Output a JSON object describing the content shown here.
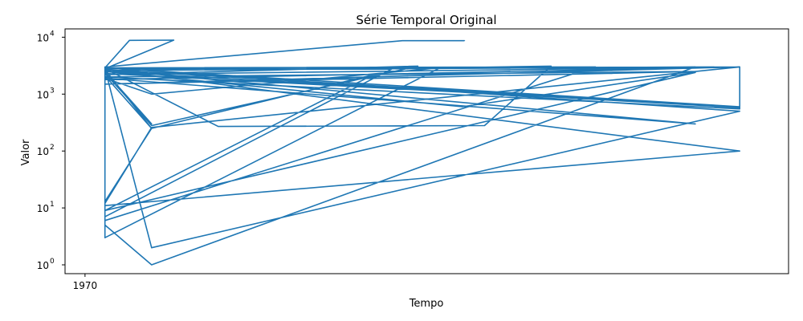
{
  "chart_data": {
    "type": "line",
    "title": "Série Temporal Original",
    "xlabel": "Tempo",
    "ylabel": "Valor",
    "yscale": "log",
    "ylim": [
      0.7,
      14000
    ],
    "grid": false,
    "legend": "none",
    "color": "#1f77b4",
    "x_ticks": [
      {
        "label": "1970",
        "t": 0
      }
    ],
    "y_ticks": [
      {
        "base": "10",
        "exp": "0",
        "value": 1
      },
      {
        "base": "10",
        "exp": "1",
        "value": 10
      },
      {
        "base": "10",
        "exp": "2",
        "value": 100
      },
      {
        "base": "10",
        "exp": "3",
        "value": 1000
      },
      {
        "base": "10",
        "exp": "4",
        "value": 10000
      }
    ],
    "xlim": [
      -0.09,
      3.17
    ],
    "series": [
      {
        "x": [
          0.09,
          0.09,
          0.09,
          0.2,
          0.4,
          0.09,
          1.6,
          2.1,
          1.8,
          0.6,
          0.09,
          0.09,
          0.3,
          0.09,
          0.09,
          0.3,
          2.75,
          0.09,
          0.09,
          0.09,
          1.7,
          2.75,
          0.09,
          1.3,
          0.3,
          0.09,
          0.09,
          2.3,
          0.09,
          2.95,
          0.3,
          0.09,
          0.09,
          0.3,
          2.95,
          0.09,
          0.09,
          1.4,
          0.09,
          0.09,
          0.09,
          2.95,
          0.09,
          0.3,
          0.09,
          0.09,
          2.95,
          0.09,
          0.09,
          0.09,
          0.3,
          1.5,
          0.09,
          2.95,
          2.95,
          0.09,
          2.75,
          0.09,
          2.95,
          0.09,
          0.09,
          1.6,
          0.3,
          0.09,
          2.75,
          0.09,
          2.95,
          0.09,
          0.09,
          0.09,
          0.09,
          1.43,
          1.71,
          1.71
        ],
        "values": [
          3000,
          3,
          2900,
          8800,
          8900,
          2800,
          2900,
          3100,
          280,
          270,
          2800,
          13,
          250,
          2700,
          5,
          1,
          3000,
          2600,
          10,
          2500,
          600,
          2400,
          9,
          2200,
          250,
          2100,
          6,
          3000,
          2900,
          500,
          2,
          2800,
          12,
          260,
          3000,
          1800,
          7,
          3000,
          2600,
          4,
          2900,
          600,
          2300,
          300,
          2500,
          11,
          100,
          2700,
          8,
          2400,
          280,
          3100,
          2200,
          3000,
          550,
          2000,
          2500,
          1500,
          3000,
          2800,
          3,
          2900,
          1000,
          1900,
          300,
          2700,
          580,
          2500,
          14,
          2900,
          3000,
          8700,
          8700,
          8650
        ]
      }
    ]
  }
}
